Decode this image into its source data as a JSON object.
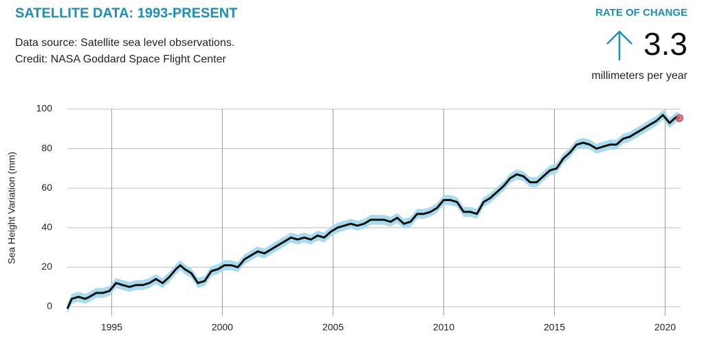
{
  "header": {
    "title": "SATELLITE DATA: 1993-PRESENT",
    "source": "Data source: Satellite sea level observations.",
    "credit": "Credit: NASA Goddard Space Flight Center"
  },
  "rate": {
    "label": "RATE OF CHANGE",
    "value": 3.3,
    "unit": "millimeters per year"
  },
  "chart_data": {
    "type": "line",
    "ylabel": "Sea Height Variation (mm)",
    "x": [
      1993.0,
      1993.2,
      1993.5,
      1993.8,
      1994.0,
      1994.3,
      1994.6,
      1994.9,
      1995.2,
      1995.5,
      1995.8,
      1996.1,
      1996.4,
      1996.7,
      1997.0,
      1997.3,
      1997.6,
      1997.9,
      1998.1,
      1998.3,
      1998.6,
      1998.9,
      1999.2,
      1999.5,
      1999.8,
      2000.1,
      2000.4,
      2000.7,
      2001.0,
      2001.3,
      2001.6,
      2001.9,
      2002.2,
      2002.5,
      2002.8,
      2003.1,
      2003.4,
      2003.7,
      2004.0,
      2004.3,
      2004.6,
      2004.9,
      2005.2,
      2005.5,
      2005.8,
      2006.1,
      2006.4,
      2006.7,
      2007.0,
      2007.3,
      2007.6,
      2007.9,
      2008.2,
      2008.5,
      2008.8,
      2009.1,
      2009.4,
      2009.7,
      2010.0,
      2010.3,
      2010.6,
      2010.9,
      2011.2,
      2011.5,
      2011.8,
      2012.1,
      2012.4,
      2012.7,
      2013.0,
      2013.3,
      2013.6,
      2013.9,
      2014.2,
      2014.5,
      2014.8,
      2015.1,
      2015.4,
      2015.7,
      2016.0,
      2016.3,
      2016.6,
      2016.9,
      2017.2,
      2017.5,
      2017.8,
      2018.1,
      2018.4,
      2018.7,
      2019.0,
      2019.3,
      2019.6,
      2019.9,
      2020.2,
      2020.5,
      2020.65
    ],
    "series": [
      {
        "color": "#111111",
        "band_color": "#a9dbee",
        "error": 2.5,
        "end_marker_color": "#e05a6a",
        "values": [
          -1,
          4,
          5,
          4,
          5,
          7,
          7,
          8,
          12,
          11,
          10,
          11,
          11,
          12,
          14,
          12,
          15,
          19,
          21,
          19,
          17,
          12,
          13,
          18,
          19,
          21,
          21,
          20,
          24,
          26,
          28,
          27,
          29,
          31,
          33,
          35,
          34,
          35,
          34,
          36,
          35,
          38,
          40,
          41,
          42,
          41,
          42,
          44,
          44,
          44,
          43,
          45,
          42,
          43,
          47,
          47,
          48,
          50,
          54,
          54,
          53,
          48,
          48,
          47,
          53,
          55,
          58,
          61,
          65,
          67,
          66,
          63,
          63,
          66,
          69,
          70,
          75,
          78,
          82,
          83,
          82,
          80,
          81,
          82,
          82,
          85,
          86,
          88,
          90,
          92,
          94,
          97,
          93,
          96,
          95.5
        ]
      }
    ],
    "xlim": [
      1993,
      2020.7
    ],
    "xticks": [
      1995,
      2000,
      2005,
      2010,
      2015,
      2020
    ],
    "ylim": [
      -4.5,
      100
    ],
    "yticks": [
      0,
      20,
      40,
      60,
      80,
      100
    ],
    "grid": true
  }
}
